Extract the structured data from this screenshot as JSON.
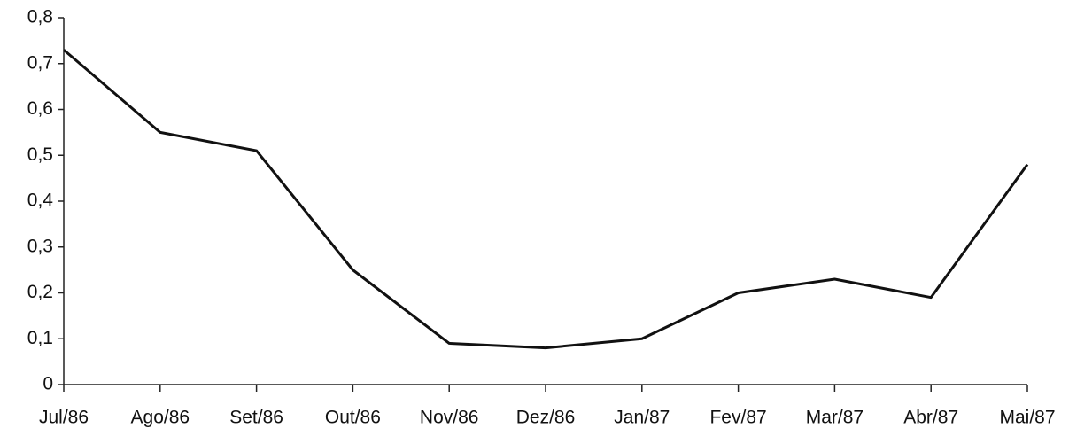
{
  "chart_data": {
    "type": "line",
    "categories": [
      "Jul/86",
      "Ago/86",
      "Set/86",
      "Out/86",
      "Nov/86",
      "Dez/86",
      "Jan/87",
      "Fev/87",
      "Mar/87",
      "Abr/87",
      "Mai/87"
    ],
    "series": [
      {
        "color": "#111111",
        "values": [
          0.73,
          0.55,
          0.51,
          0.25,
          0.09,
          0.08,
          0.1,
          0.2,
          0.23,
          0.19,
          0.48
        ]
      }
    ],
    "ylim": [
      0,
      0.8
    ],
    "yticks": [
      0,
      {
        "value": 0.1,
        "label": "0,1"
      },
      {
        "value": 0.2,
        "label": "0,2"
      },
      {
        "value": 0.3,
        "label": "0,3"
      },
      {
        "value": 0.4,
        "label": "0,4"
      },
      {
        "value": 0.5,
        "label": "0,5"
      },
      {
        "value": 0.6,
        "label": "0,6"
      },
      {
        "value": 0.7,
        "label": "0,7"
      },
      {
        "value": 0.8,
        "label": "0,8"
      }
    ],
    "grid": false
  }
}
